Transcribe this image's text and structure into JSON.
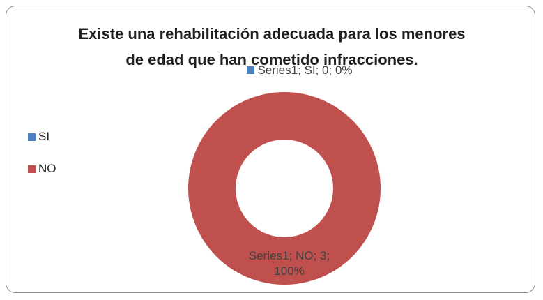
{
  "chart_data": {
    "type": "donut",
    "title": "Existe una rehabilitación adecuada para los menores de edad que han cometido infracciones.",
    "categories": [
      "SI",
      "NO"
    ],
    "values": [
      0,
      3
    ],
    "value_labels": [
      "Series1; SI; 0; 0%",
      "Series1; NO; 3; 100%"
    ],
    "colors": [
      "#4f81bd",
      "#c0504d"
    ],
    "legend": "left"
  }
}
